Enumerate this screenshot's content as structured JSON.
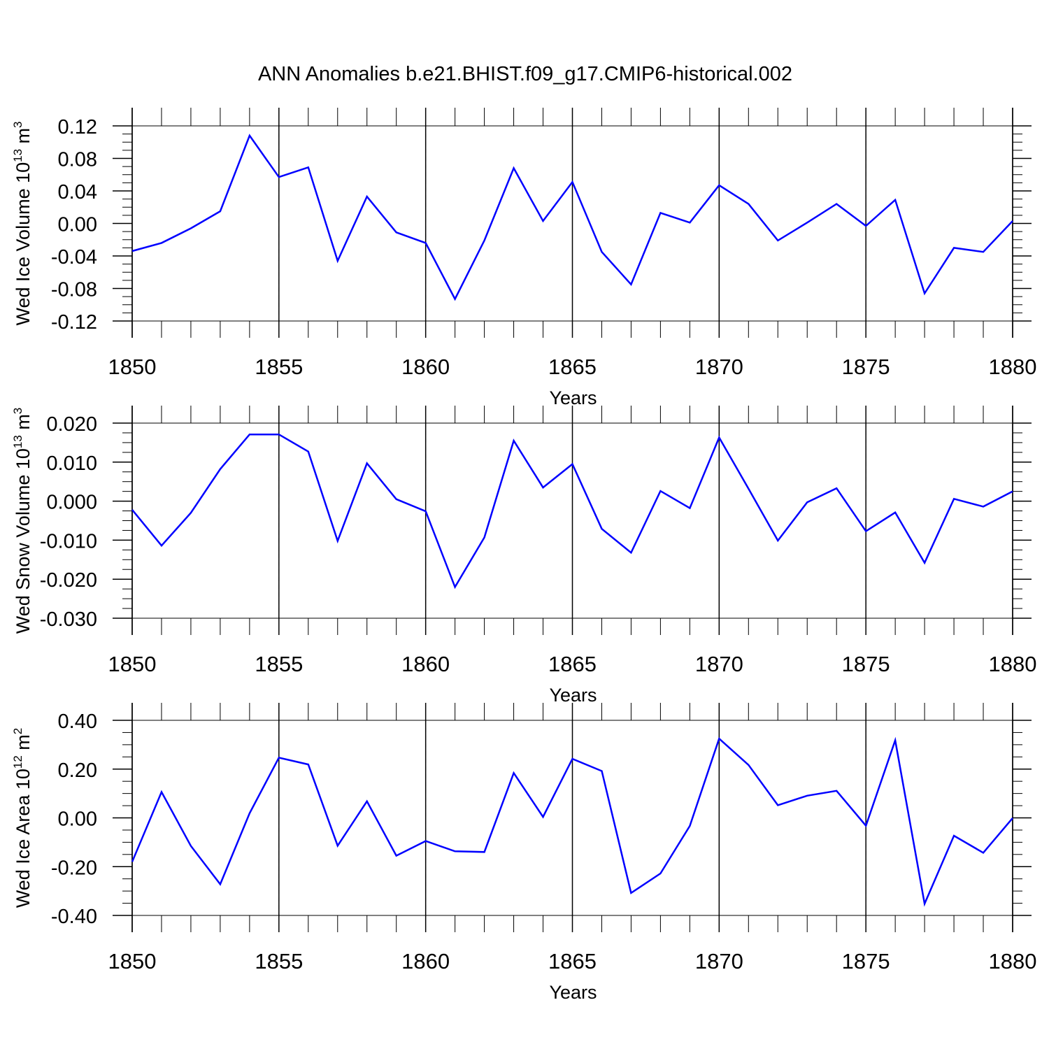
{
  "title": "ANN Anomalies b.e21.BHIST.f09_g17.CMIP6-historical.002",
  "colors": {
    "line": "#0000ff",
    "axis": "#000000",
    "grid": "#000000"
  },
  "chart_data": [
    {
      "type": "line",
      "ylabel": {
        "text": "Wed Ice Volume 10",
        "exp": "13",
        "unit_pre": " m",
        "unit_exp": "3"
      },
      "xlabel": "Years",
      "xlim": [
        1850,
        1880
      ],
      "ylim": [
        -0.12,
        0.12
      ],
      "x_ticks": [
        1850,
        1855,
        1860,
        1865,
        1870,
        1875,
        1880
      ],
      "y_ticks": [
        "0.12",
        "0.08",
        "0.04",
        "0.00",
        "-0.04",
        "-0.08",
        "-0.12"
      ],
      "y_tick_values": [
        0.12,
        0.08,
        0.04,
        0.0,
        -0.04,
        -0.08,
        -0.12
      ],
      "grid": "vertical dashed at major x ticks",
      "x": [
        1850,
        1851,
        1852,
        1853,
        1854,
        1855,
        1856,
        1857,
        1858,
        1859,
        1860,
        1861,
        1862,
        1863,
        1864,
        1865,
        1866,
        1867,
        1868,
        1869,
        1870,
        1871,
        1872,
        1873,
        1874,
        1875,
        1876,
        1877,
        1878,
        1879,
        1880
      ],
      "values": [
        -0.034,
        -0.024,
        -0.006,
        0.015,
        0.108,
        0.057,
        0.069,
        -0.046,
        0.033,
        -0.011,
        -0.024,
        -0.093,
        -0.021,
        0.068,
        0.003,
        0.051,
        -0.035,
        -0.075,
        0.013,
        0.001,
        0.047,
        0.024,
        -0.021,
        0.001,
        0.024,
        -0.003,
        0.029,
        -0.086,
        -0.03,
        -0.035,
        0.003
      ]
    },
    {
      "type": "line",
      "ylabel": {
        "text": "Wed Snow Volume 10",
        "exp": "13",
        "unit_pre": " m",
        "unit_exp": "3"
      },
      "xlabel": "Years",
      "xlim": [
        1850,
        1880
      ],
      "ylim": [
        -0.03,
        0.02
      ],
      "x_ticks": [
        1850,
        1855,
        1860,
        1865,
        1870,
        1875,
        1880
      ],
      "y_ticks": [
        "0.020",
        "0.010",
        "0.000",
        "-0.010",
        "-0.020",
        "-0.030"
      ],
      "y_tick_values": [
        0.02,
        0.01,
        0.0,
        -0.01,
        -0.02,
        -0.03
      ],
      "grid": "vertical dashed at major x ticks",
      "x": [
        1850,
        1851,
        1852,
        1853,
        1854,
        1855,
        1856,
        1857,
        1858,
        1859,
        1860,
        1861,
        1862,
        1863,
        1864,
        1865,
        1866,
        1867,
        1868,
        1869,
        1870,
        1871,
        1872,
        1873,
        1874,
        1875,
        1876,
        1877,
        1878,
        1879,
        1880
      ],
      "values": [
        -0.0022,
        -0.0114,
        -0.003,
        0.0082,
        0.0171,
        0.0171,
        0.0127,
        -0.0102,
        0.0097,
        0.0005,
        -0.0026,
        -0.022,
        -0.0093,
        0.0155,
        0.0035,
        0.0095,
        -0.0071,
        -0.0132,
        0.0026,
        -0.0018,
        0.0163,
        0.0032,
        -0.0101,
        -0.0003,
        0.0033,
        -0.0077,
        -0.0029,
        -0.0158,
        0.0006,
        -0.0014,
        0.0025
      ]
    },
    {
      "type": "line",
      "ylabel": {
        "text": "Wed Ice Area 10",
        "exp": "12",
        "unit_pre": " m",
        "unit_exp": "2"
      },
      "xlabel": "Years",
      "xlim": [
        1850,
        1880
      ],
      "ylim": [
        -0.4,
        0.4
      ],
      "x_ticks": [
        1850,
        1855,
        1860,
        1865,
        1870,
        1875,
        1880
      ],
      "y_ticks": [
        "0.40",
        "0.20",
        "0.00",
        "-0.20",
        "-0.40"
      ],
      "y_tick_values": [
        0.4,
        0.2,
        0.0,
        -0.2,
        -0.4
      ],
      "grid": "vertical dashed at major x ticks",
      "x": [
        1850,
        1851,
        1852,
        1853,
        1854,
        1855,
        1856,
        1857,
        1858,
        1859,
        1860,
        1861,
        1862,
        1863,
        1864,
        1865,
        1866,
        1867,
        1868,
        1869,
        1870,
        1871,
        1872,
        1873,
        1874,
        1875,
        1876,
        1877,
        1878,
        1879,
        1880
      ],
      "values": [
        -0.18,
        0.106,
        -0.115,
        -0.272,
        0.019,
        0.247,
        0.219,
        -0.114,
        0.068,
        -0.155,
        -0.095,
        -0.137,
        -0.14,
        0.184,
        0.004,
        0.242,
        0.192,
        -0.308,
        -0.228,
        -0.033,
        0.325,
        0.217,
        0.052,
        0.091,
        0.111,
        -0.032,
        0.318,
        -0.352,
        -0.073,
        -0.143,
        -0.001
      ]
    }
  ]
}
